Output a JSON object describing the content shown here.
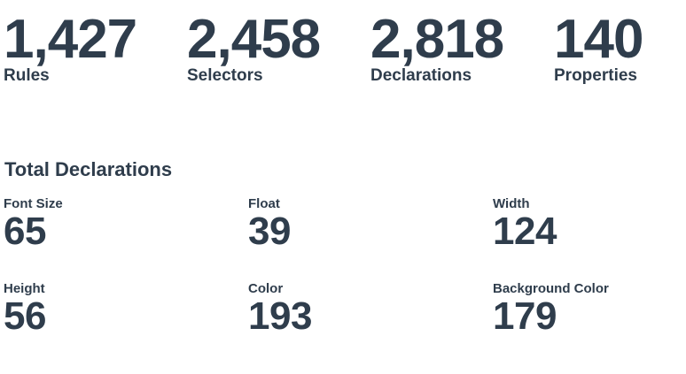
{
  "summary": {
    "rules": {
      "value": "1,427",
      "label": "Rules"
    },
    "selectors": {
      "value": "2,458",
      "label": "Selectors"
    },
    "declarations": {
      "value": "2,818",
      "label": "Declarations"
    },
    "properties": {
      "value": "140",
      "label": "Properties"
    }
  },
  "total_declarations": {
    "title": "Total Declarations",
    "items": [
      {
        "label": "Font Size",
        "value": "65"
      },
      {
        "label": "Float",
        "value": "39"
      },
      {
        "label": "Width",
        "value": "124"
      },
      {
        "label": "Height",
        "value": "56"
      },
      {
        "label": "Color",
        "value": "193"
      },
      {
        "label": "Background Color",
        "value": "179"
      }
    ]
  },
  "colors": {
    "text": "#2f3d4c",
    "background": "#ffffff"
  }
}
